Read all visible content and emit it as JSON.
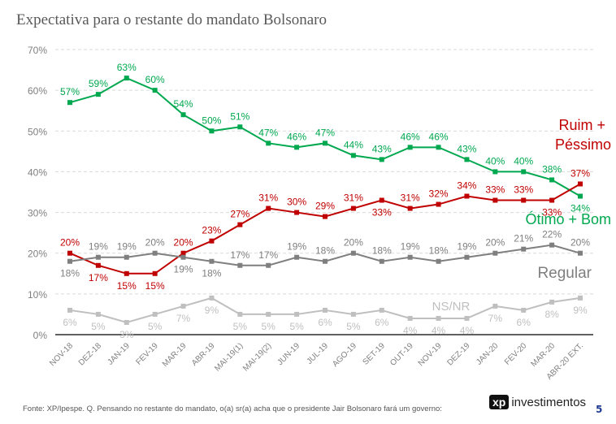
{
  "chart_data": {
    "type": "line",
    "title": "Expectativa para o restante do mandato Bolsonaro",
    "categories": [
      "NOV-18",
      "DEZ-18",
      "JAN-19",
      "FEV-19",
      "MAR-19",
      "ABR-19",
      "MAI-19(1)",
      "MAI-19(2)",
      "JUN-19",
      "JUL-19",
      "AGO-19",
      "SET-19",
      "OUT-19",
      "NOV-19",
      "DEZ-19",
      "JAN-20",
      "FEV-20",
      "MAR-20",
      "ABR-20 EXT."
    ],
    "ylim": [
      0,
      70
    ],
    "yticks": [
      "0%",
      "10%",
      "20%",
      "30%",
      "40%",
      "50%",
      "60%",
      "70%"
    ],
    "grid": true,
    "series": [
      {
        "name": "Ótimo + Bom",
        "color": "#00a84f",
        "values": [
          57,
          59,
          63,
          60,
          54,
          50,
          51,
          47,
          46,
          47,
          44,
          43,
          46,
          46,
          43,
          40,
          40,
          38,
          34
        ]
      },
      {
        "name": "Ruim + Péssimo",
        "color": "#c00000",
        "values": [
          20,
          17,
          15,
          15,
          20,
          23,
          27,
          31,
          30,
          29,
          31,
          33,
          31,
          32,
          34,
          33,
          33,
          33,
          37
        ]
      },
      {
        "name": "Regular",
        "color": "#7f7f7f",
        "values": [
          18,
          19,
          19,
          20,
          19,
          18,
          17,
          17,
          19,
          18,
          20,
          18,
          19,
          18,
          19,
          20,
          21,
          22,
          20
        ]
      },
      {
        "name": "NS/NR",
        "color": "#bfbfbf",
        "values": [
          6,
          5,
          3,
          5,
          7,
          9,
          5,
          5,
          5,
          6,
          5,
          6,
          4,
          4,
          4,
          7,
          6,
          8,
          9
        ]
      }
    ]
  },
  "footer": {
    "source": "Fonte: XP/Ipespe. Q. Pensando no restante do mandato, o(a) sr(a) acha que o presidente Jair Bolsonaro fará um governo:",
    "logo_mark": "xp",
    "logo_text": "investimentos",
    "page": "5"
  }
}
